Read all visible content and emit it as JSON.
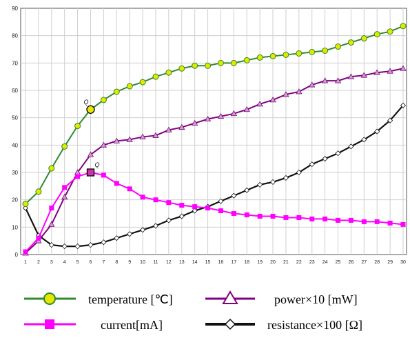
{
  "chart_data": {
    "type": "line",
    "x": [
      1,
      2,
      3,
      4,
      5,
      6,
      7,
      8,
      9,
      10,
      11,
      12,
      13,
      14,
      15,
      16,
      17,
      18,
      19,
      20,
      21,
      22,
      23,
      24,
      25,
      26,
      27,
      28,
      29,
      30
    ],
    "xlim": [
      1,
      30
    ],
    "ylim": [
      0,
      90
    ],
    "yticks": [
      0,
      10,
      20,
      30,
      40,
      50,
      60,
      70,
      80,
      90
    ],
    "grid": true,
    "legend_position": "bottom",
    "series": [
      {
        "name": "temperature [℃]",
        "color": "#2e8b2e",
        "marker_color": "#e6e600",
        "marker": "circle",
        "values": [
          18.5,
          23,
          31.5,
          39.5,
          47,
          53,
          56.5,
          59.5,
          61.5,
          63,
          65,
          66.5,
          68,
          69,
          69,
          70,
          70,
          71,
          72,
          72.5,
          73,
          73.5,
          74,
          74.5,
          76,
          77.5,
          79,
          80.5,
          81.5,
          83.5
        ]
      },
      {
        "name": "current[mA]",
        "color": "#ff00ff",
        "marker_color": "#ff00ff",
        "marker": "square",
        "values": [
          1,
          6,
          17,
          24.5,
          28.5,
          30,
          29,
          26,
          24,
          21,
          20,
          19,
          18,
          17.5,
          17,
          16,
          15,
          14.5,
          14,
          14,
          13.5,
          13.5,
          13,
          13,
          12.5,
          12.5,
          12,
          12,
          11.5,
          11
        ]
      },
      {
        "name": "power×10 [mW]",
        "color": "#800080",
        "marker_color": "#c9a0c9",
        "marker": "triangle",
        "values": [
          0.5,
          5,
          11,
          21,
          30,
          36.5,
          40,
          41.5,
          42,
          43,
          43.5,
          45.5,
          46.5,
          48,
          49.5,
          50.5,
          51.5,
          53,
          55,
          56.5,
          58.5,
          59.5,
          62,
          63.5,
          63.5,
          65,
          65.5,
          66.5,
          67,
          68
        ]
      },
      {
        "name": "resistance×100 [Ω]",
        "color": "#111111",
        "marker_color": "#ffffff",
        "marker": "diamond",
        "values": [
          17,
          7,
          3.5,
          3,
          3,
          3.5,
          4.5,
          6,
          7.5,
          9,
          10.5,
          12.5,
          14,
          16,
          17.5,
          19.5,
          21.5,
          23.5,
          25.5,
          26.5,
          28,
          30,
          33,
          35,
          37,
          39.5,
          42,
          45,
          49,
          54.5
        ]
      }
    ],
    "annotations": [
      {
        "label": "Q",
        "series": 0,
        "x": 6
      },
      {
        "label": "Q",
        "series": 1,
        "x": 6
      }
    ]
  }
}
